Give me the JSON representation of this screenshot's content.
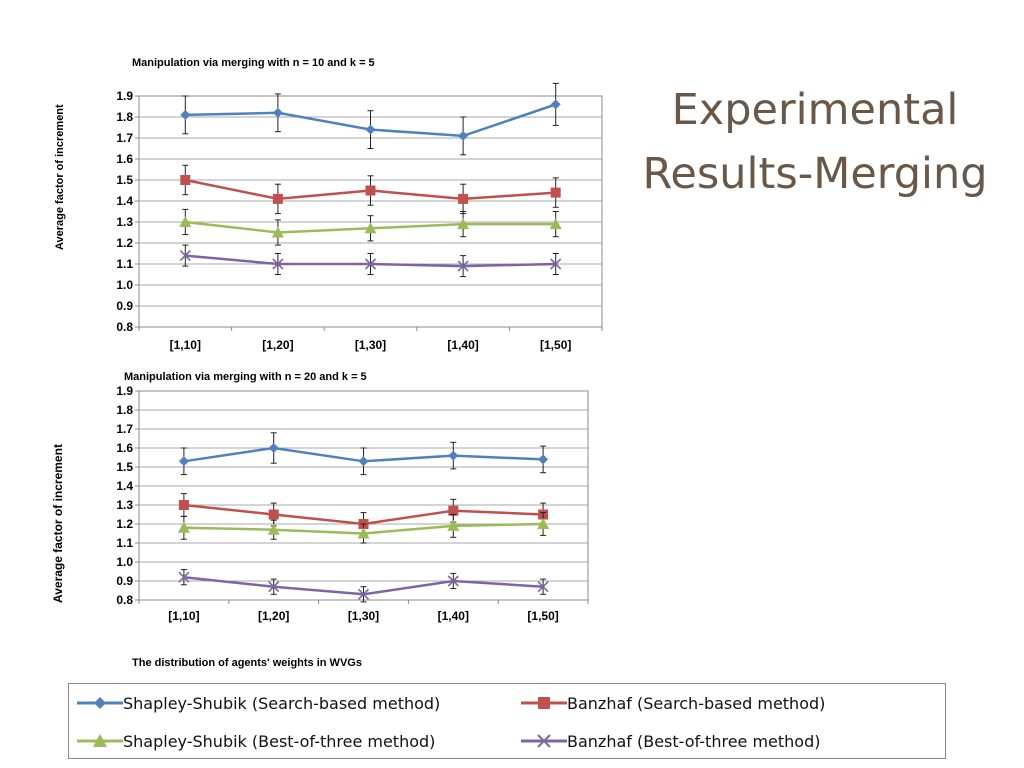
{
  "slide": {
    "title_line1": "Experimental",
    "title_line2": "Results-Merging",
    "distribution_caption": "The distribution of  agents' weights in WVGs"
  },
  "legend": [
    {
      "label": "Shapley-Shubik (Search-based method)",
      "color": "#4f81bd",
      "marker": "diamond"
    },
    {
      "label": "Banzhaf (Search-based method)",
      "color": "#c0504d",
      "marker": "square"
    },
    {
      "label": "Shapley-Shubik (Best-of-three method)",
      "color": "#9bbb59",
      "marker": "triangle"
    },
    {
      "label": "Banzhaf (Best-of-three method)",
      "color": "#8064a2",
      "marker": "x"
    }
  ],
  "chart_data": [
    {
      "type": "line",
      "title": "Manipulation via merging with n = 10 and k = 5",
      "xlabel": "",
      "ylabel": "Average factor of increment",
      "categories": [
        "[1,10]",
        "[1,20]",
        "[1,30]",
        "[1,40]",
        "[1,50]"
      ],
      "ylim": [
        0.8,
        1.9
      ],
      "yticks": [
        "0.8",
        "0.9",
        "1.0",
        "1.1",
        "1.2",
        "1.3",
        "1.4",
        "1.5",
        "1.6",
        "1.7",
        "1.8",
        "1.9"
      ],
      "grid": true,
      "error_bars": true,
      "series": [
        {
          "name": "Shapley-Shubik (Search-based method)",
          "values": [
            1.81,
            1.82,
            1.74,
            1.71,
            1.86
          ],
          "errors": [
            0.09,
            0.09,
            0.09,
            0.09,
            0.1
          ]
        },
        {
          "name": "Banzhaf (Search-based method)",
          "values": [
            1.5,
            1.41,
            1.45,
            1.41,
            1.44
          ],
          "errors": [
            0.07,
            0.07,
            0.07,
            0.07,
            0.07
          ]
        },
        {
          "name": "Shapley-Shubik (Best-of-three method)",
          "values": [
            1.3,
            1.25,
            1.27,
            1.29,
            1.29
          ],
          "errors": [
            0.06,
            0.06,
            0.06,
            0.06,
            0.06
          ]
        },
        {
          "name": "Banzhaf (Best-of-three method)",
          "values": [
            1.14,
            1.1,
            1.1,
            1.09,
            1.1
          ],
          "errors": [
            0.05,
            0.05,
            0.05,
            0.05,
            0.05
          ]
        }
      ]
    },
    {
      "type": "line",
      "title": "Manipulation via merging with n = 20 and k = 5",
      "xlabel": "",
      "ylabel": "Average factor of increment",
      "categories": [
        "[1,10]",
        "[1,20]",
        "[1,30]",
        "[1,40]",
        "[1,50]"
      ],
      "ylim": [
        0.8,
        1.9
      ],
      "yticks": [
        "0.8",
        "0.9",
        "1.0",
        "1.1",
        "1.2",
        "1.3",
        "1.4",
        "1.5",
        "1.6",
        "1.7",
        "1.8",
        "1.9"
      ],
      "grid": true,
      "error_bars": true,
      "series": [
        {
          "name": "Shapley-Shubik (Search-based method)",
          "values": [
            1.53,
            1.6,
            1.53,
            1.56,
            1.54
          ],
          "errors": [
            0.07,
            0.08,
            0.07,
            0.07,
            0.07
          ]
        },
        {
          "name": "Banzhaf (Search-based method)",
          "values": [
            1.3,
            1.25,
            1.2,
            1.27,
            1.25
          ],
          "errors": [
            0.06,
            0.06,
            0.06,
            0.06,
            0.06
          ]
        },
        {
          "name": "Shapley-Shubik (Best-of-three method)",
          "values": [
            1.18,
            1.17,
            1.15,
            1.19,
            1.2
          ],
          "errors": [
            0.06,
            0.05,
            0.05,
            0.06,
            0.06
          ]
        },
        {
          "name": "Banzhaf (Best-of-three method)",
          "values": [
            0.92,
            0.87,
            0.83,
            0.9,
            0.87
          ],
          "errors": [
            0.04,
            0.04,
            0.04,
            0.04,
            0.04
          ]
        }
      ]
    }
  ]
}
